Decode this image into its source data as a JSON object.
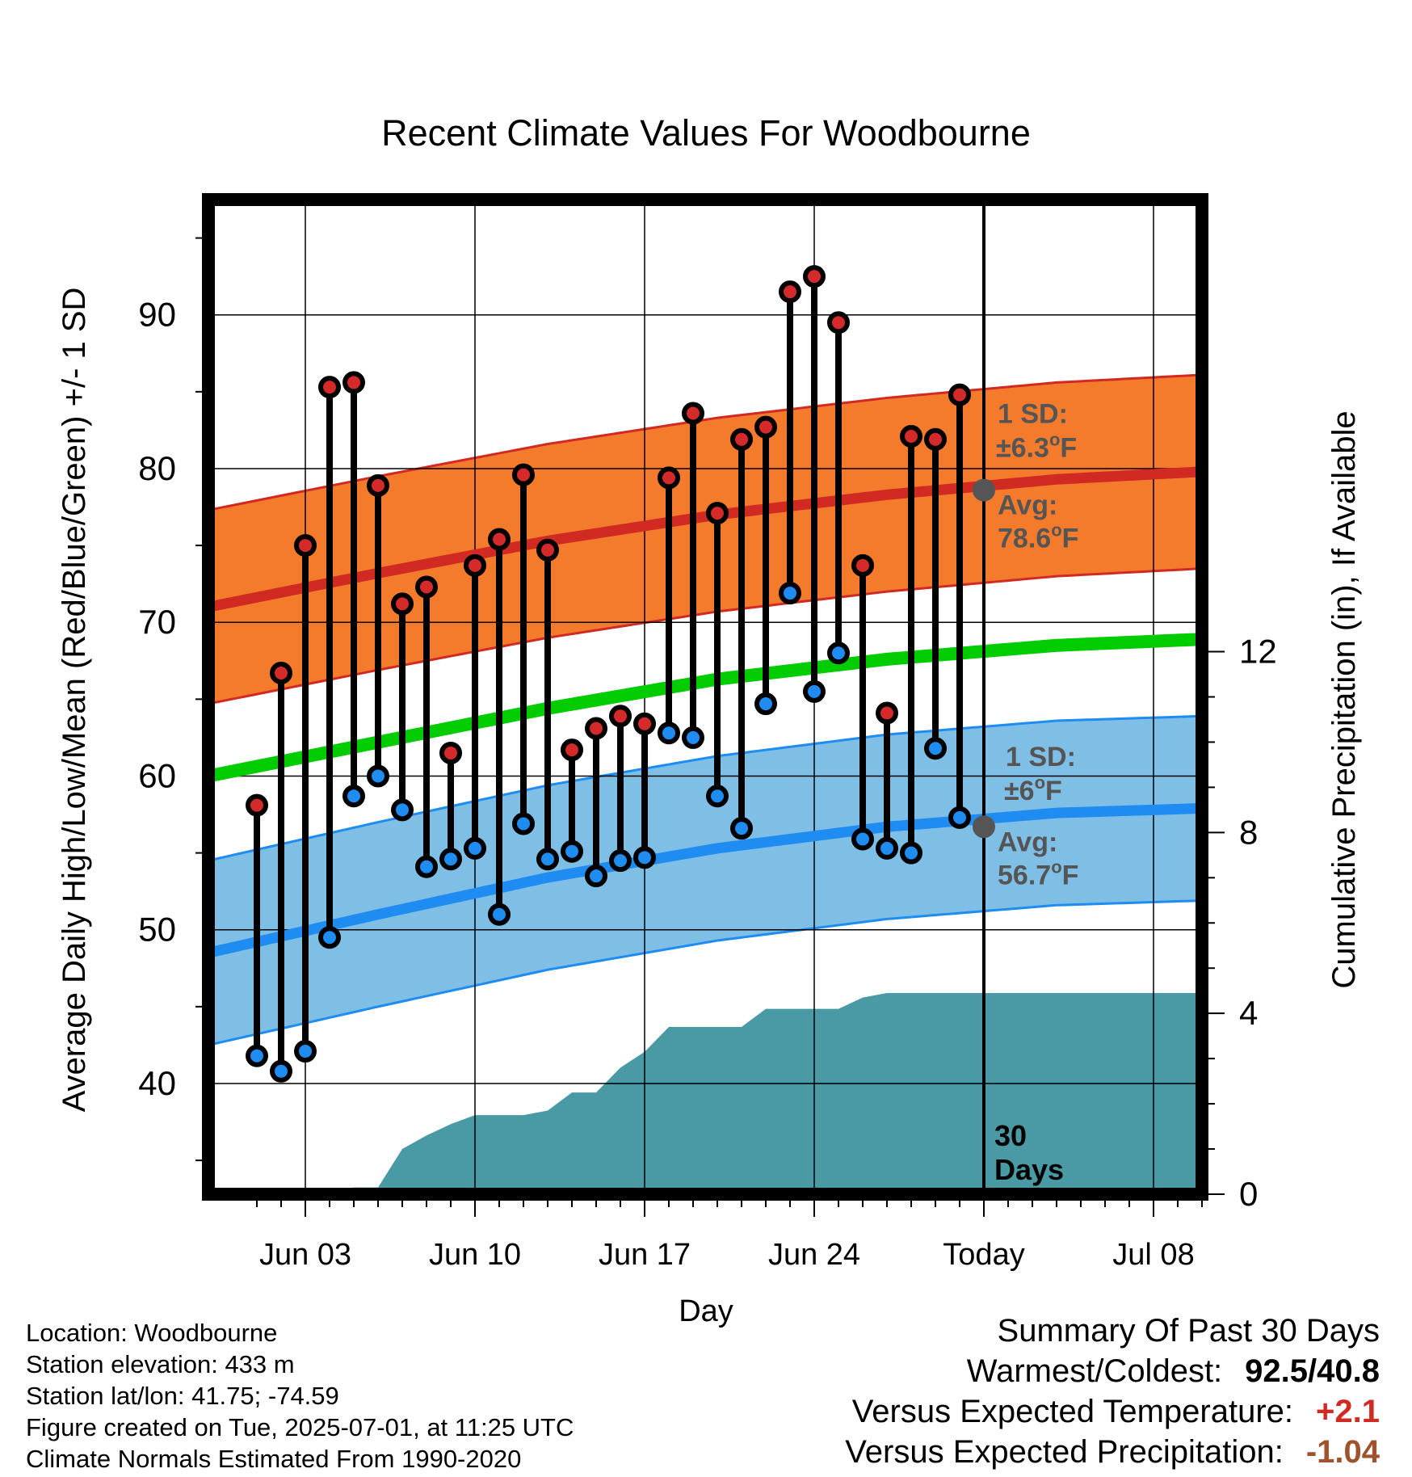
{
  "chart_data": {
    "type": "line",
    "title": "Recent Climate Values For Woodbourne",
    "xlabel": "Day",
    "ylabel": "Average Daily High/Low/Mean (Red/Blue/Green) +/- 1 SD",
    "y2label": "Cumulative Precipitation (in), If Available",
    "x_range": [
      "2025-05-30",
      "2025-07-10"
    ],
    "ylim": [
      32.8,
      97.5
    ],
    "y2lim": [
      0,
      22
    ],
    "y_ticks": [
      40,
      50,
      60,
      70,
      80,
      90
    ],
    "y2_ticks": [
      0,
      4,
      8,
      12
    ],
    "x_ticks": [
      {
        "date": "2025-06-03",
        "label": "Jun 03"
      },
      {
        "date": "2025-06-10",
        "label": "Jun 10"
      },
      {
        "date": "2025-06-17",
        "label": "Jun 17"
      },
      {
        "date": "2025-06-24",
        "label": "Jun 24"
      },
      {
        "date": "2025-07-01",
        "label": "Today"
      },
      {
        "date": "2025-07-08",
        "label": "Jul 08"
      }
    ],
    "grid": true,
    "today": "2025-07-01",
    "days": [
      "2025-06-01",
      "2025-06-02",
      "2025-06-03",
      "2025-06-04",
      "2025-06-05",
      "2025-06-06",
      "2025-06-07",
      "2025-06-08",
      "2025-06-09",
      "2025-06-10",
      "2025-06-11",
      "2025-06-12",
      "2025-06-13",
      "2025-06-14",
      "2025-06-15",
      "2025-06-16",
      "2025-06-17",
      "2025-06-18",
      "2025-06-19",
      "2025-06-20",
      "2025-06-21",
      "2025-06-22",
      "2025-06-23",
      "2025-06-24",
      "2025-06-25",
      "2025-06-26",
      "2025-06-27",
      "2025-06-28",
      "2025-06-29",
      "2025-06-30"
    ],
    "highs": [
      58.1,
      66.7,
      75.0,
      85.3,
      85.6,
      78.9,
      71.2,
      72.3,
      61.5,
      73.7,
      75.4,
      79.6,
      74.7,
      61.7,
      63.1,
      63.9,
      63.4,
      79.4,
      83.6,
      77.1,
      81.9,
      82.7,
      91.5,
      92.5,
      89.5,
      73.7,
      64.1,
      82.1,
      81.9,
      84.8
    ],
    "lows": [
      41.8,
      40.8,
      42.1,
      49.5,
      58.7,
      60.0,
      57.8,
      54.1,
      54.6,
      55.3,
      51.0,
      56.9,
      54.6,
      55.1,
      53.5,
      54.5,
      54.7,
      62.8,
      62.5,
      58.7,
      56.6,
      64.7,
      71.9,
      65.5,
      68.0,
      55.9,
      55.3,
      55.0,
      61.8,
      57.3
    ],
    "normals": {
      "dates": [
        "2025-05-30",
        "2025-06-06",
        "2025-06-13",
        "2025-06-20",
        "2025-06-27",
        "2025-07-04",
        "2025-07-10"
      ],
      "high_mean": [
        71.0,
        73.2,
        75.3,
        77.0,
        78.3,
        79.3,
        79.8
      ],
      "low_mean": [
        48.5,
        51.0,
        53.4,
        55.3,
        56.7,
        57.6,
        57.9
      ],
      "mean": [
        60.0,
        62.2,
        64.4,
        66.3,
        67.6,
        68.5,
        68.9
      ],
      "high_sd": 6.3,
      "low_sd": 6.0
    },
    "precip": {
      "days": [
        "2025-05-30",
        "2025-06-04",
        "2025-06-05",
        "2025-06-06",
        "2025-06-07",
        "2025-06-08",
        "2025-06-09",
        "2025-06-10",
        "2025-06-11",
        "2025-06-12",
        "2025-06-13",
        "2025-06-14",
        "2025-06-15",
        "2025-06-16",
        "2025-06-17",
        "2025-06-18",
        "2025-06-19",
        "2025-06-20",
        "2025-06-21",
        "2025-06-22",
        "2025-06-23",
        "2025-06-24",
        "2025-06-25",
        "2025-06-26",
        "2025-06-27",
        "2025-06-28",
        "2025-07-01",
        "2025-07-10"
      ],
      "values": [
        0,
        0,
        0.15,
        0.15,
        1.0,
        1.3,
        1.55,
        1.75,
        1.75,
        1.75,
        1.85,
        2.25,
        2.25,
        2.8,
        3.15,
        3.7,
        3.7,
        3.7,
        3.7,
        4.1,
        4.1,
        4.1,
        4.1,
        4.35,
        4.45,
        4.45,
        4.45,
        4.45
      ]
    },
    "annotations": {
      "high_sd_label": "1 SD:",
      "high_sd_value": "±6.3",
      "high_avg_label": "Avg:",
      "high_avg_value": "78.6",
      "low_sd_label": "1 SD:",
      "low_sd_value": "±6",
      "low_avg_label": "Avg:",
      "low_avg_value": "56.7",
      "degree_symbol": "o",
      "unit": "F",
      "period_line1": "30",
      "period_line2": "Days"
    },
    "colors": {
      "high_band": "#f47b2c",
      "high_edge": "#d12a23",
      "high_line": "#d12a23",
      "low_band": "#7fbfe6",
      "low_edge": "#1e8cf0",
      "low_line": "#1e8cf0",
      "mean_line": "#00cc00",
      "precip": "#4a9aa5",
      "high_dot": "#d42a2a",
      "low_dot": "#1e8cf0",
      "annotation": "#555555",
      "avg_marker": "#555555"
    }
  },
  "info": {
    "location": "Location: Woodbourne",
    "elevation": "Station elevation: 433 m",
    "latlon": "Station lat/lon: 41.75; -74.59",
    "created": "Figure created on Tue, 2025-07-01, at 11:25 UTC",
    "normals": "Climate Normals Estimated From 1990-2020"
  },
  "summary": {
    "title": "Summary Of Past 30 Days",
    "warm_cold_label": "Warmest/Coldest:",
    "warm_cold_value": "92.5/40.8",
    "temp_label": "Versus Expected Temperature:",
    "temp_value": "+2.1",
    "temp_color": "#d12a23",
    "precip_label": "Versus Expected Precipitation:",
    "precip_value": "-1.04",
    "precip_color": "#a0522d"
  }
}
